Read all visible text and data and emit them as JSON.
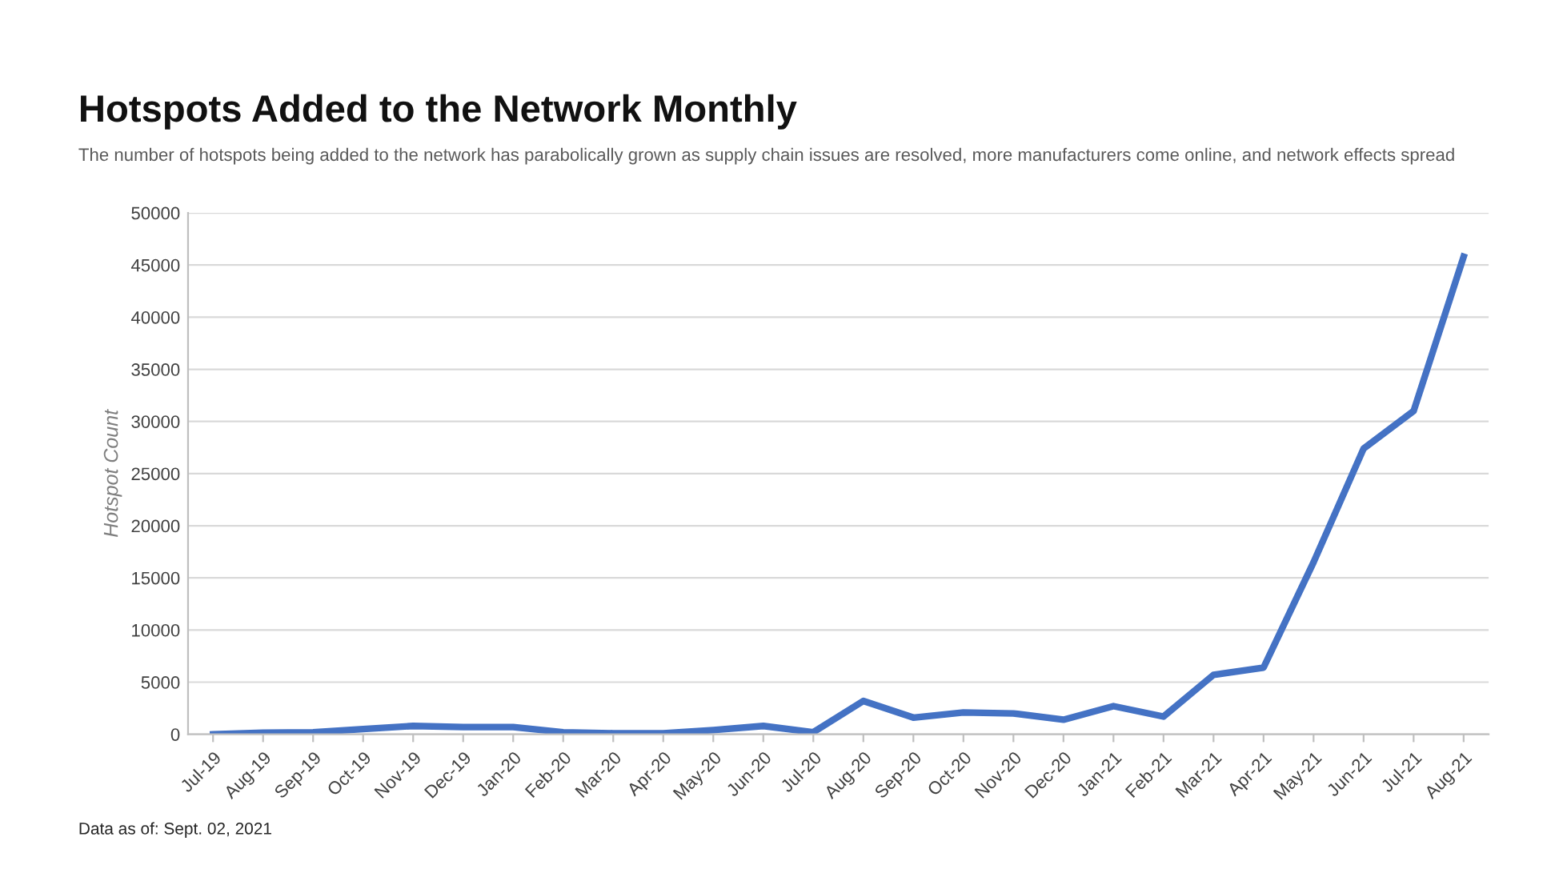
{
  "chart_data": {
    "type": "line",
    "title": "Hotspots Added to the Network Monthly",
    "subtitle": "The number of hotspots being added to the network has parabolically grown as supply chain issues are resolved, more manufacturers come online, and network effects spread",
    "ylabel": "Hotspot Count",
    "annotations": [
      "Data as of: Sept. 02, 2021"
    ],
    "categories": [
      "Jul-19",
      "Aug-19",
      "Sep-19",
      "Oct-19",
      "Nov-19",
      "Dec-19",
      "Jan-20",
      "Feb-20",
      "Mar-20",
      "Apr-20",
      "May-20",
      "Jun-20",
      "Jul-20",
      "Aug-20",
      "Sep-20",
      "Oct-20",
      "Nov-20",
      "Dec-20",
      "Jan-21",
      "Feb-21",
      "Mar-21",
      "Apr-21",
      "May-21",
      "Jun-21",
      "Jul-21",
      "Aug-21"
    ],
    "series": [
      {
        "color": "#4472c4",
        "values": [
          0,
          150,
          200,
          500,
          800,
          700,
          700,
          200,
          100,
          100,
          400,
          800,
          200,
          3200,
          1600,
          2100,
          2000,
          1400,
          2700,
          1700,
          5700,
          6400,
          16500,
          27400,
          31000,
          45800
        ]
      }
    ],
    "ylim": [
      0,
      50000
    ],
    "yticks": [
      0,
      5000,
      10000,
      15000,
      20000,
      25000,
      30000,
      35000,
      40000,
      45000,
      50000
    ],
    "grid": "y",
    "legend": false,
    "marker": "none",
    "line_style": "solid"
  }
}
